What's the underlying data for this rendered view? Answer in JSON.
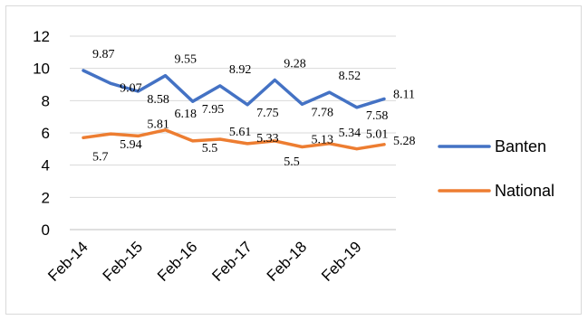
{
  "chart_data": {
    "type": "line",
    "title": "",
    "xlabel": "",
    "ylabel": "",
    "ylim": [
      0,
      12
    ],
    "yticks": [
      "0",
      "2",
      "4",
      "6",
      "8",
      "10",
      "12"
    ],
    "x_tick_labels": [
      "Feb-14",
      "Feb-15",
      "Feb-16",
      "Feb-17",
      "Feb-18",
      "Feb-19"
    ],
    "grid": "horizontal",
    "legend_position": "right",
    "series": [
      {
        "name": "Banten",
        "color": "#4472C4",
        "values": [
          9.87,
          9.07,
          8.58,
          9.55,
          7.95,
          8.92,
          7.75,
          9.28,
          7.78,
          8.52,
          7.58,
          8.11
        ],
        "labels": [
          "9.87",
          "9.07",
          "8.58",
          "9.55",
          "7.95",
          "8.92",
          "7.75",
          "9.28",
          "7.78",
          "8.52",
          "7.58",
          "8.11"
        ]
      },
      {
        "name": "National",
        "color": "#ED7D31",
        "values": [
          5.7,
          5.94,
          5.81,
          6.18,
          5.5,
          5.61,
          5.33,
          5.5,
          5.13,
          5.34,
          5.01,
          5.28
        ],
        "labels": [
          "5.7",
          "5.94",
          "5.81",
          "6.18",
          "5.5",
          "5.61",
          "5.33",
          "5.5",
          "5.13",
          "5.34",
          "5.01",
          "5.28"
        ]
      }
    ]
  }
}
